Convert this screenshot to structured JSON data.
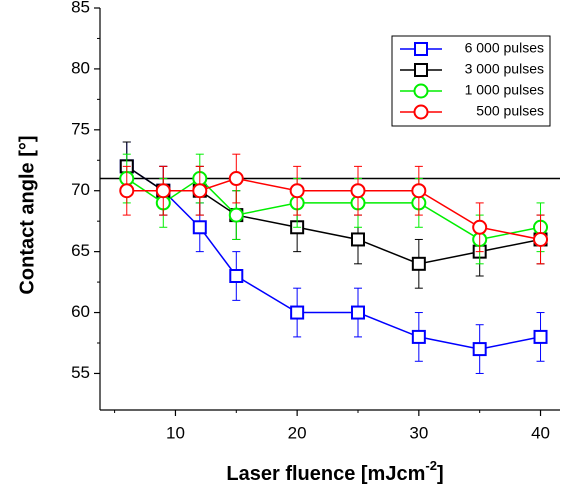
{
  "chart_data": {
    "type": "line",
    "ylabel": "Contact angle [°]",
    "xlabel_parts": [
      "Laser fluence [mJcm",
      "-2",
      "]"
    ],
    "x": [
      6,
      9,
      12,
      15,
      20,
      25,
      30,
      35,
      40
    ],
    "xlim": [
      3.8,
      41.6
    ],
    "xticks": [
      10,
      20,
      30,
      40
    ],
    "xminor": [
      5,
      15,
      25,
      35
    ],
    "ylim": [
      52,
      85
    ],
    "yticks": [
      55,
      60,
      65,
      70,
      75,
      80,
      85
    ],
    "yminor": [
      57.5,
      62.5,
      67.5,
      72.5,
      77.5,
      82.5
    ],
    "reference_line": 71,
    "legend": "upper right",
    "series": [
      {
        "name": "6 000 pulses",
        "color": "#0000ff",
        "marker": "square",
        "values": [
          72,
          70,
          67,
          63,
          60,
          60,
          58,
          57,
          58
        ],
        "errors": [
          2,
          2,
          2,
          2,
          2,
          2,
          2,
          2,
          2
        ]
      },
      {
        "name": "3 000 pulses",
        "color": "#000000",
        "marker": "square",
        "values": [
          72,
          70,
          70,
          68,
          67,
          66,
          64,
          65,
          66
        ],
        "errors": [
          2,
          2,
          2,
          2,
          2,
          2,
          2,
          2,
          2
        ]
      },
      {
        "name": "1 000 pulses",
        "color": "#00ee00",
        "marker": "circle",
        "values": [
          71,
          69,
          71,
          68,
          69,
          69,
          69,
          66,
          67
        ],
        "errors": [
          2,
          2,
          2,
          2,
          2,
          2,
          2,
          2,
          2
        ]
      },
      {
        "name": "500 pulses",
        "color": "#ff0000",
        "marker": "circle",
        "values": [
          70,
          70,
          70,
          71,
          70,
          70,
          70,
          67,
          66
        ],
        "errors": [
          2,
          2,
          2,
          2,
          2,
          2,
          2,
          2,
          2
        ]
      }
    ]
  }
}
